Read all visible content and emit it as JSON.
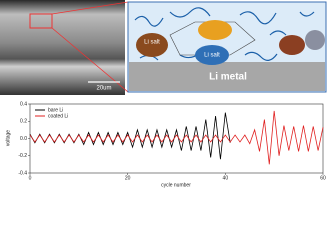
{
  "figure": {
    "scale_bar": "20um",
    "salt_labels": [
      "Li salt",
      "Li salt"
    ],
    "substrate": "Li metal"
  },
  "chart_data": {
    "type": "line",
    "xlabel": "cycle number",
    "ylabel": "voltage",
    "xlim": [
      0,
      60
    ],
    "xticks": [
      0,
      20,
      40,
      60
    ],
    "ylim": [
      -0.4,
      0.4
    ],
    "yticks": [
      {
        "value": -0.4,
        "label": "-0.4"
      },
      {
        "value": -0.2,
        "label": "-0.2"
      },
      {
        "value": 0,
        "label": "0.0"
      },
      {
        "value": 0.2,
        "label": "0.2"
      },
      {
        "value": 0.4,
        "label": "0.4"
      }
    ],
    "legend": "upper left",
    "series": [
      {
        "name": "bare Li",
        "color": "#000000",
        "x": [
          0,
          1,
          2,
          3,
          4,
          5,
          6,
          7,
          8,
          9,
          10,
          11,
          12,
          13,
          14,
          15,
          16,
          17,
          18,
          19,
          20,
          21,
          22,
          23,
          24,
          25,
          26,
          27,
          28,
          29,
          30,
          31,
          32,
          33,
          34,
          35,
          36,
          37,
          38,
          39,
          40,
          41
        ],
        "values": [
          0.05,
          -0.05,
          0.05,
          -0.05,
          0.05,
          -0.05,
          0.05,
          -0.05,
          0.05,
          -0.05,
          0.05,
          -0.07,
          0.07,
          -0.07,
          0.07,
          -0.07,
          0.07,
          -0.07,
          0.07,
          -0.07,
          0.07,
          -0.1,
          0.1,
          -0.1,
          0.1,
          -0.1,
          0.1,
          -0.1,
          0.1,
          -0.1,
          0.1,
          -0.14,
          0.14,
          -0.14,
          0.14,
          -0.14,
          0.22,
          -0.22,
          0.26,
          -0.24,
          0.3,
          -0.05
        ]
      },
      {
        "name": "coated Li",
        "color": "#e02020",
        "x": [
          0,
          1,
          2,
          3,
          4,
          5,
          6,
          7,
          8,
          9,
          10,
          11,
          12,
          13,
          14,
          15,
          16,
          17,
          18,
          19,
          20,
          21,
          22,
          23,
          24,
          25,
          26,
          27,
          28,
          29,
          30,
          31,
          32,
          33,
          34,
          35,
          36,
          37,
          38,
          39,
          40,
          41,
          42,
          43,
          44,
          45,
          46,
          47,
          48,
          49,
          50,
          51,
          52,
          53,
          54,
          55,
          56,
          57,
          58,
          59,
          60
        ],
        "values": [
          0.04,
          -0.04,
          0.04,
          -0.04,
          0.04,
          -0.04,
          0.04,
          -0.04,
          0.04,
          -0.04,
          0.04,
          -0.04,
          0.04,
          -0.04,
          0.04,
          -0.04,
          0.04,
          -0.04,
          0.04,
          -0.04,
          0.04,
          -0.04,
          0.04,
          -0.04,
          0.04,
          -0.04,
          0.04,
          -0.04,
          0.04,
          -0.04,
          0.04,
          -0.04,
          0.04,
          -0.04,
          0.04,
          -0.04,
          0.04,
          -0.04,
          0.04,
          -0.04,
          0.04,
          -0.04,
          0.04,
          -0.04,
          0.04,
          -0.06,
          0.1,
          -0.15,
          0.22,
          -0.3,
          0.32,
          -0.2,
          0.15,
          -0.14,
          0.14,
          -0.15,
          0.15,
          -0.15,
          0.14,
          -0.14,
          0.13
        ]
      }
    ]
  }
}
